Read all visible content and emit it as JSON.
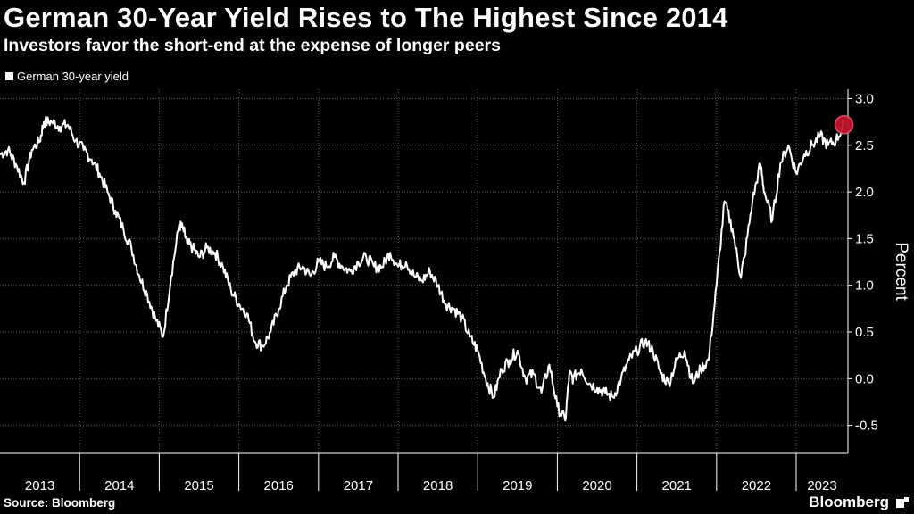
{
  "header": {
    "title": "German 30-Year Yield Rises to The Highest Since 2014",
    "subtitle": "Investors favor the short-end at the expense of longer peers"
  },
  "footer": {
    "source": "Source: Bloomberg",
    "brand": "Bloomberg"
  },
  "colors": {
    "background": "#000000",
    "line": "#ffffff",
    "grid": "#5a5a5a",
    "marker": "#c0172e"
  },
  "chart_data": {
    "type": "line",
    "title": "German 30-Year Yield Rises to The Highest Since 2014",
    "subtitle": "Investors favor the short-end at the expense of longer peers",
    "ylabel": "Percent",
    "xlabel": "",
    "ylim": [
      -0.8,
      3.1
    ],
    "yticks": [
      3.0,
      2.5,
      2.0,
      1.5,
      1.0,
      0.5,
      0.0,
      -0.5
    ],
    "ytick_labels": [
      "3.0",
      "2.5",
      "2.0",
      "1.5",
      "1.0",
      "0.5",
      "0.0",
      "-0.5"
    ],
    "xlim": [
      2013.0,
      2023.65
    ],
    "xtick_labels": [
      "2013",
      "2014",
      "2015",
      "2016",
      "2017",
      "2018",
      "2019",
      "2020",
      "2021",
      "2022",
      "2023"
    ],
    "grid": true,
    "legend": "top-left",
    "highlight_point": {
      "x": 2023.6,
      "y": 2.72
    },
    "series": [
      {
        "name": "German 30-year yield",
        "x": [
          2013.0,
          2013.1,
          2013.2,
          2013.3,
          2013.4,
          2013.5,
          2013.55,
          2013.65,
          2013.75,
          2013.85,
          2013.95,
          2014.05,
          2014.15,
          2014.25,
          2014.35,
          2014.45,
          2014.55,
          2014.65,
          2014.75,
          2014.85,
          2014.95,
          2015.05,
          2015.15,
          2015.25,
          2015.3,
          2015.35,
          2015.42,
          2015.5,
          2015.6,
          2015.7,
          2015.8,
          2015.9,
          2016.0,
          2016.1,
          2016.2,
          2016.3,
          2016.4,
          2016.5,
          2016.6,
          2016.7,
          2016.8,
          2016.9,
          2017.0,
          2017.1,
          2017.2,
          2017.3,
          2017.4,
          2017.5,
          2017.6,
          2017.7,
          2017.8,
          2017.9,
          2018.0,
          2018.1,
          2018.2,
          2018.3,
          2018.4,
          2018.5,
          2018.6,
          2018.7,
          2018.8,
          2018.9,
          2019.0,
          2019.1,
          2019.2,
          2019.3,
          2019.4,
          2019.5,
          2019.6,
          2019.7,
          2019.8,
          2019.9,
          2020.0,
          2020.1,
          2020.15,
          2020.2,
          2020.3,
          2020.4,
          2020.5,
          2020.6,
          2020.7,
          2020.8,
          2020.9,
          2021.0,
          2021.1,
          2021.2,
          2021.3,
          2021.4,
          2021.5,
          2021.6,
          2021.7,
          2021.8,
          2021.9,
          2022.0,
          2022.1,
          2022.2,
          2022.3,
          2022.35,
          2022.45,
          2022.55,
          2022.6,
          2022.7,
          2022.8,
          2022.9,
          2023.0,
          2023.1,
          2023.2,
          2023.3,
          2023.4,
          2023.5,
          2023.6
        ],
        "y": [
          2.4,
          2.45,
          2.3,
          2.1,
          2.45,
          2.55,
          2.75,
          2.75,
          2.7,
          2.72,
          2.55,
          2.45,
          2.35,
          2.2,
          2.0,
          1.8,
          1.6,
          1.4,
          1.1,
          0.9,
          0.65,
          0.45,
          1.1,
          1.65,
          1.6,
          1.45,
          1.4,
          1.3,
          1.4,
          1.35,
          1.2,
          0.95,
          0.8,
          0.7,
          0.4,
          0.35,
          0.5,
          0.75,
          1.0,
          1.15,
          1.2,
          1.1,
          1.25,
          1.2,
          1.3,
          1.2,
          1.15,
          1.25,
          1.3,
          1.2,
          1.2,
          1.35,
          1.2,
          1.25,
          1.1,
          1.05,
          1.15,
          1.0,
          0.8,
          0.75,
          0.65,
          0.45,
          0.3,
          0.0,
          -0.2,
          0.1,
          0.2,
          0.3,
          0.0,
          0.05,
          -0.15,
          0.15,
          -0.3,
          -0.45,
          0.05,
          0.0,
          0.1,
          -0.05,
          -0.1,
          -0.15,
          -0.2,
          0.0,
          0.2,
          0.3,
          0.4,
          0.3,
          0.05,
          -0.05,
          0.2,
          0.3,
          -0.05,
          0.1,
          0.2,
          1.0,
          1.9,
          1.6,
          1.1,
          1.3,
          1.9,
          2.3,
          2.0,
          1.7,
          2.3,
          2.5,
          2.2,
          2.4,
          2.5,
          2.6,
          2.5,
          2.55,
          2.72
        ]
      }
    ]
  }
}
